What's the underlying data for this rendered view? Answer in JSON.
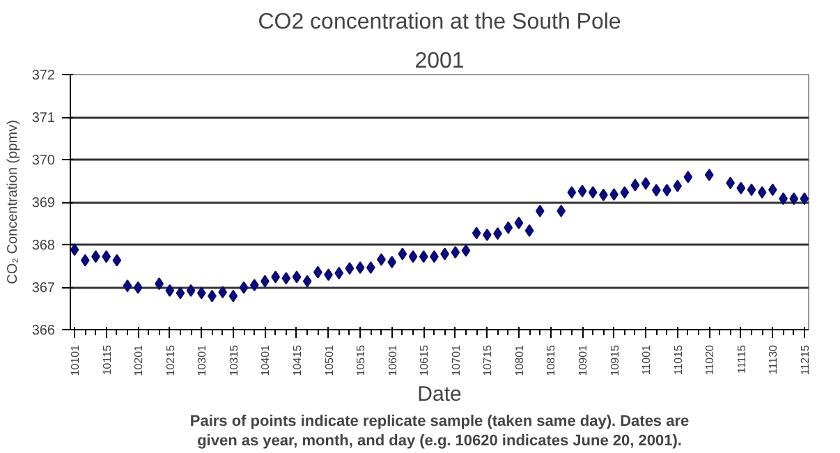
{
  "chart_data": {
    "type": "scatter",
    "title": "CO2 concentration at the South Pole",
    "subtitle": "2001",
    "xlabel": "Date",
    "ylabel": "CO₂ Concentration (ppmv)",
    "annotations": [
      "Pairs of points indicate replicate sample (taken same day). Dates are given as year, month, and day (e.g. 10620 indicates June 20, 2001)."
    ],
    "categories": [
      "10101",
      null,
      null,
      "10115",
      null,
      null,
      "10201",
      null,
      null,
      "10215",
      null,
      null,
      "10301",
      null,
      null,
      "10315",
      null,
      null,
      "10401",
      null,
      null,
      "10415",
      null,
      null,
      "10501",
      null,
      null,
      "10515",
      null,
      null,
      "10601",
      null,
      null,
      "10615",
      null,
      null,
      "10701",
      null,
      null,
      "10715",
      null,
      null,
      "10801",
      null,
      null,
      "10815",
      null,
      null,
      "10901",
      null,
      null,
      "10915",
      null,
      null,
      "11001",
      null,
      null,
      "11015",
      null,
      null,
      "11020",
      null,
      null,
      "11115",
      null,
      null,
      "11130",
      null,
      null,
      "11215"
    ],
    "series": [
      {
        "color": "#0a0a78",
        "values": [
          367.88,
          367.63,
          367.72,
          367.72,
          367.63,
          367.03,
          366.99,
          null,
          367.08,
          366.92,
          366.86,
          366.92,
          366.86,
          366.79,
          366.88,
          366.79,
          366.99,
          367.05,
          367.14,
          367.24,
          367.21,
          367.24,
          367.14,
          367.35,
          367.29,
          367.33,
          367.44,
          367.46,
          367.46,
          367.65,
          367.59,
          367.78,
          367.72,
          367.72,
          367.72,
          367.78,
          367.82,
          367.86,
          368.27,
          368.23,
          368.26,
          368.4,
          368.51,
          368.33,
          368.79,
          null,
          368.79,
          369.23,
          369.26,
          369.23,
          369.17,
          369.18,
          369.23,
          369.4,
          369.44,
          369.28,
          369.28,
          369.38,
          369.59,
          null,
          369.64,
          null,
          369.45,
          369.33,
          369.29,
          369.23,
          369.29,
          369.08,
          369.08,
          369.08
        ]
      }
    ],
    "ylim": [
      366,
      372
    ],
    "yticks": [
      366,
      367,
      368,
      369,
      370,
      371,
      372
    ],
    "grid": "y",
    "marker": "diamond"
  }
}
